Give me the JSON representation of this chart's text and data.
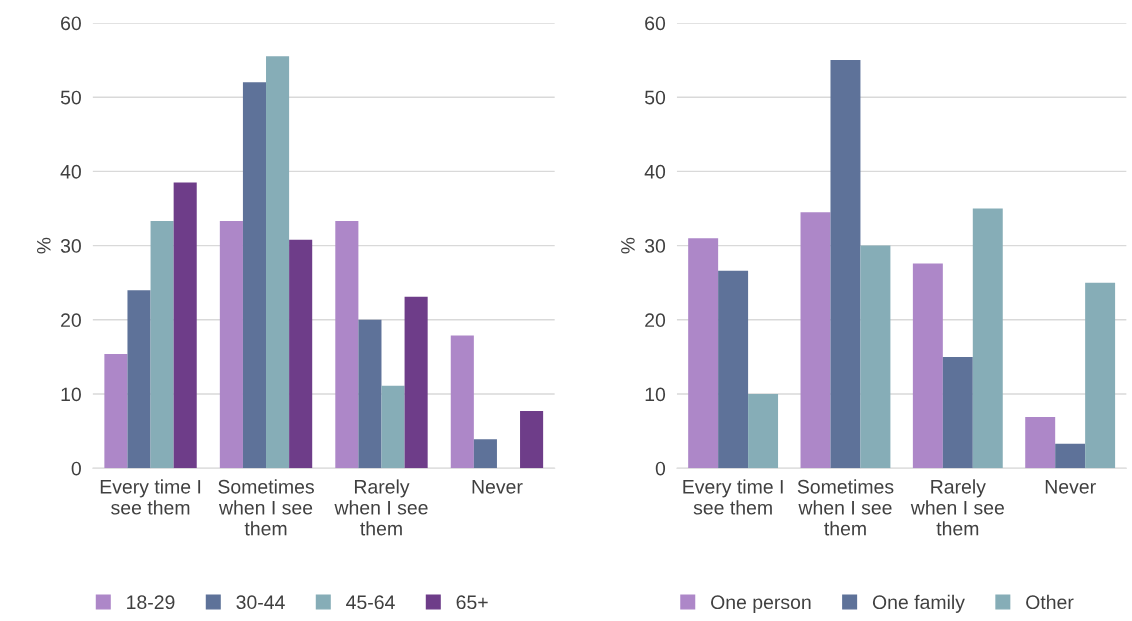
{
  "chart_data": [
    {
      "type": "bar",
      "categories": [
        "Every time I\nsee them",
        "Sometimes\nwhen I see\nthem",
        "Rarely\nwhen I see\nthem",
        "Never"
      ],
      "ylabel": "%",
      "ylim": [
        0,
        60
      ],
      "yticks": [
        0,
        10,
        20,
        30,
        40,
        50,
        60
      ],
      "grid": "y",
      "legend": "bottom",
      "series": [
        {
          "name": "18-29",
          "color": "#ad87c8",
          "values": [
            15.4,
            33.3,
            33.3,
            17.9
          ]
        },
        {
          "name": "30-44",
          "color": "#5e7299",
          "values": [
            24.0,
            52.0,
            20.0,
            3.9
          ]
        },
        {
          "name": "45-64",
          "color": "#86adb7",
          "values": [
            33.3,
            55.5,
            11.1,
            0
          ]
        },
        {
          "name": "65+",
          "color": "#6e3d89",
          "values": [
            38.5,
            30.8,
            23.1,
            7.7
          ]
        }
      ]
    },
    {
      "type": "bar",
      "categories": [
        "Every time I\nsee them",
        "Sometimes\nwhen I see\nthem",
        "Rarely\nwhen I see\nthem",
        "Never"
      ],
      "ylabel": "%",
      "ylim": [
        0,
        60
      ],
      "yticks": [
        0,
        10,
        20,
        30,
        40,
        50,
        60
      ],
      "grid": "y",
      "legend": "bottom",
      "series": [
        {
          "name": "One person",
          "color": "#ad87c8",
          "values": [
            31.0,
            34.5,
            27.6,
            6.9
          ]
        },
        {
          "name": "One family",
          "color": "#5e7299",
          "values": [
            26.6,
            55.0,
            15.0,
            3.3
          ]
        },
        {
          "name": "Other",
          "color": "#86adb7",
          "values": [
            10.0,
            30.0,
            35.0,
            25.0
          ]
        }
      ]
    }
  ]
}
